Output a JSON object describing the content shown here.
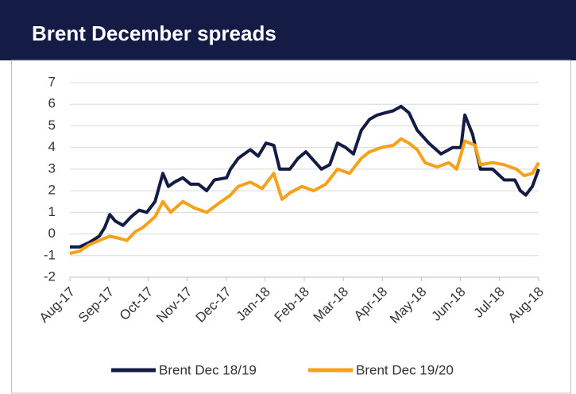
{
  "chart_data": {
    "type": "line",
    "title": "Brent December spreads",
    "xlim": [
      0,
      12
    ],
    "xticks": [
      {
        "value": 0,
        "label": "Aug-17"
      },
      {
        "value": 1,
        "label": "Sep-17"
      },
      {
        "value": 2,
        "label": "Oct-17"
      },
      {
        "value": 3,
        "label": "Nov-17"
      },
      {
        "value": 4,
        "label": "Dec-17"
      },
      {
        "value": 5,
        "label": "Jan-18"
      },
      {
        "value": 6,
        "label": "Feb-18"
      },
      {
        "value": 7,
        "label": "Mar-18"
      },
      {
        "value": 8,
        "label": "Apr-18"
      },
      {
        "value": 9,
        "label": "May-18"
      },
      {
        "value": 10,
        "label": "Jun-18"
      },
      {
        "value": 11,
        "label": "Jul-18"
      },
      {
        "value": 12,
        "label": "Aug-18"
      }
    ],
    "ylim": [
      -2,
      7
    ],
    "yticks": [
      -2,
      -1,
      0,
      1,
      2,
      3,
      4,
      5,
      6,
      7
    ],
    "grid": true,
    "legend": "bottom",
    "series": [
      {
        "name": "Brent Dec 18/19",
        "color": "#141c45",
        "x": [
          0,
          0.24,
          0.49,
          0.75,
          0.89,
          1.02,
          1.16,
          1.36,
          1.57,
          1.77,
          1.97,
          2.18,
          2.38,
          2.52,
          2.68,
          2.89,
          3.09,
          3.29,
          3.5,
          3.7,
          4.01,
          4.11,
          4.31,
          4.62,
          4.82,
          5.02,
          5.22,
          5.37,
          5.63,
          5.84,
          6.04,
          6.24,
          6.44,
          6.65,
          6.85,
          7.06,
          7.26,
          7.46,
          7.67,
          7.87,
          8.07,
          8.28,
          8.48,
          8.68,
          8.89,
          9.19,
          9.5,
          9.8,
          10.01,
          10.11,
          10.31,
          10.51,
          10.82,
          11.12,
          11.39,
          11.53,
          11.67,
          11.84,
          12
        ],
        "values": [
          -0.6,
          -0.6,
          -0.4,
          -0.1,
          0.3,
          0.9,
          0.6,
          0.4,
          0.8,
          1.1,
          1.0,
          1.5,
          2.8,
          2.2,
          2.4,
          2.6,
          2.3,
          2.3,
          2.0,
          2.5,
          2.6,
          3.0,
          3.5,
          3.9,
          3.6,
          4.2,
          4.1,
          3.0,
          3.0,
          3.5,
          3.8,
          3.4,
          3.0,
          3.2,
          4.2,
          4.0,
          3.7,
          4.8,
          5.3,
          5.5,
          5.6,
          5.7,
          5.9,
          5.6,
          4.8,
          4.2,
          3.7,
          4.0,
          4.0,
          5.5,
          4.6,
          3.0,
          3.0,
          2.5,
          2.5,
          2.0,
          1.8,
          2.2,
          3.0
        ]
      },
      {
        "name": "Brent Dec 19/20",
        "color": "#f7a11a",
        "x": [
          0,
          0.24,
          0.49,
          0.75,
          1.02,
          1.26,
          1.46,
          1.67,
          1.87,
          2.18,
          2.38,
          2.58,
          2.89,
          3.19,
          3.5,
          3.8,
          4.11,
          4.31,
          4.62,
          4.92,
          5.22,
          5.43,
          5.63,
          5.94,
          6.24,
          6.55,
          6.85,
          7.16,
          7.46,
          7.67,
          7.97,
          8.28,
          8.48,
          8.68,
          8.89,
          9.09,
          9.4,
          9.7,
          9.9,
          10.11,
          10.37,
          10.51,
          10.82,
          11.12,
          11.43,
          11.63,
          11.84,
          12
        ],
        "values": [
          -0.9,
          -0.8,
          -0.5,
          -0.3,
          -0.1,
          -0.2,
          -0.3,
          0.1,
          0.3,
          0.8,
          1.5,
          1.0,
          1.5,
          1.2,
          1.0,
          1.4,
          1.8,
          2.2,
          2.4,
          2.1,
          2.8,
          1.6,
          1.9,
          2.2,
          2.0,
          2.3,
          3.0,
          2.8,
          3.5,
          3.8,
          4.0,
          4.1,
          4.4,
          4.2,
          3.9,
          3.3,
          3.1,
          3.3,
          3.0,
          4.3,
          4.1,
          3.2,
          3.3,
          3.2,
          3.0,
          2.7,
          2.8,
          3.3
        ]
      }
    ]
  }
}
